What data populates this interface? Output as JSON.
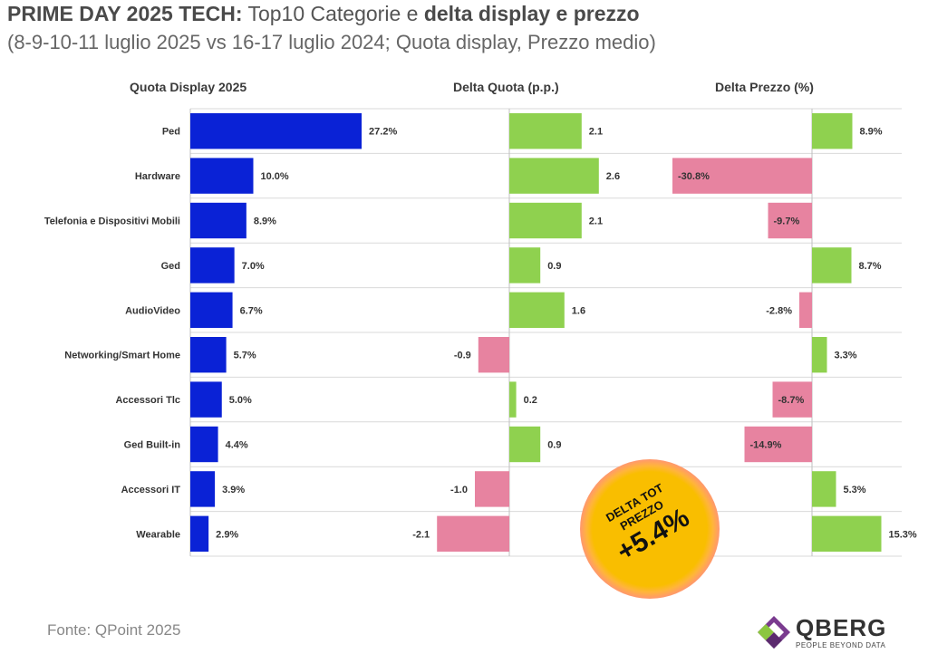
{
  "header": {
    "title_bold": "PRIME DAY 2025 TECH:",
    "title_mid": " Top10 Categorie e ",
    "title_bold2": "delta display e prezzo",
    "subtitle": "(8-9-10-11 luglio 2025 vs 16-17 luglio 2024; Quota display, Prezzo medio)"
  },
  "chart_data": {
    "type": "bar",
    "categories": [
      "Ped",
      "Hardware",
      "Telefonia e Dispositivi Mobili",
      "Ged",
      "AudioVideo",
      "Networking/Smart Home",
      "Accessori Tlc",
      "Ged Built-in",
      "Accessori IT",
      "Wearable"
    ],
    "series": [
      {
        "name": "Quota Display 2025",
        "values": [
          27.2,
          10.0,
          8.9,
          7.0,
          6.7,
          5.7,
          5.0,
          4.4,
          3.9,
          2.9
        ],
        "labels": [
          "27.2%",
          "10.0%",
          "8.9%",
          "7.0%",
          "6.7%",
          "5.7%",
          "5.0%",
          "4.4%",
          "3.9%",
          "2.9%"
        ]
      },
      {
        "name": "Delta Quota (p.p.)",
        "values": [
          2.1,
          2.6,
          2.1,
          0.9,
          1.6,
          -0.9,
          0.2,
          0.9,
          -1.0,
          -2.1
        ],
        "labels": [
          "2.1",
          "2.6",
          "2.1",
          "0.9",
          "1.6",
          "-0.9",
          "0.2",
          "0.9",
          "-1.0",
          "-2.1"
        ]
      },
      {
        "name": "Delta Prezzo (%)",
        "values": [
          8.9,
          -30.8,
          -9.7,
          8.7,
          -2.8,
          3.3,
          -8.7,
          -14.9,
          5.3,
          15.3
        ],
        "labels": [
          "8.9%",
          "-30.8%",
          "-9.7%",
          "8.7%",
          "-2.8%",
          "3.3%",
          "-8.7%",
          "-14.9%",
          "5.3%",
          "15.3%"
        ]
      }
    ],
    "colors": {
      "display": "#0a22d6",
      "positive": "#8fd14f",
      "negative": "#e783a0",
      "grid": "#d9d9d9",
      "axis": "#bfbfbf",
      "label": "#333333"
    }
  },
  "badge": {
    "line1": "DELTA TOT",
    "line2": "PREZZO",
    "value": "+5.4%"
  },
  "footer": {
    "source": "Fonte: QPoint 2025",
    "logo_name": "QBERG",
    "logo_tagline": "PEOPLE BEYOND DATA"
  }
}
